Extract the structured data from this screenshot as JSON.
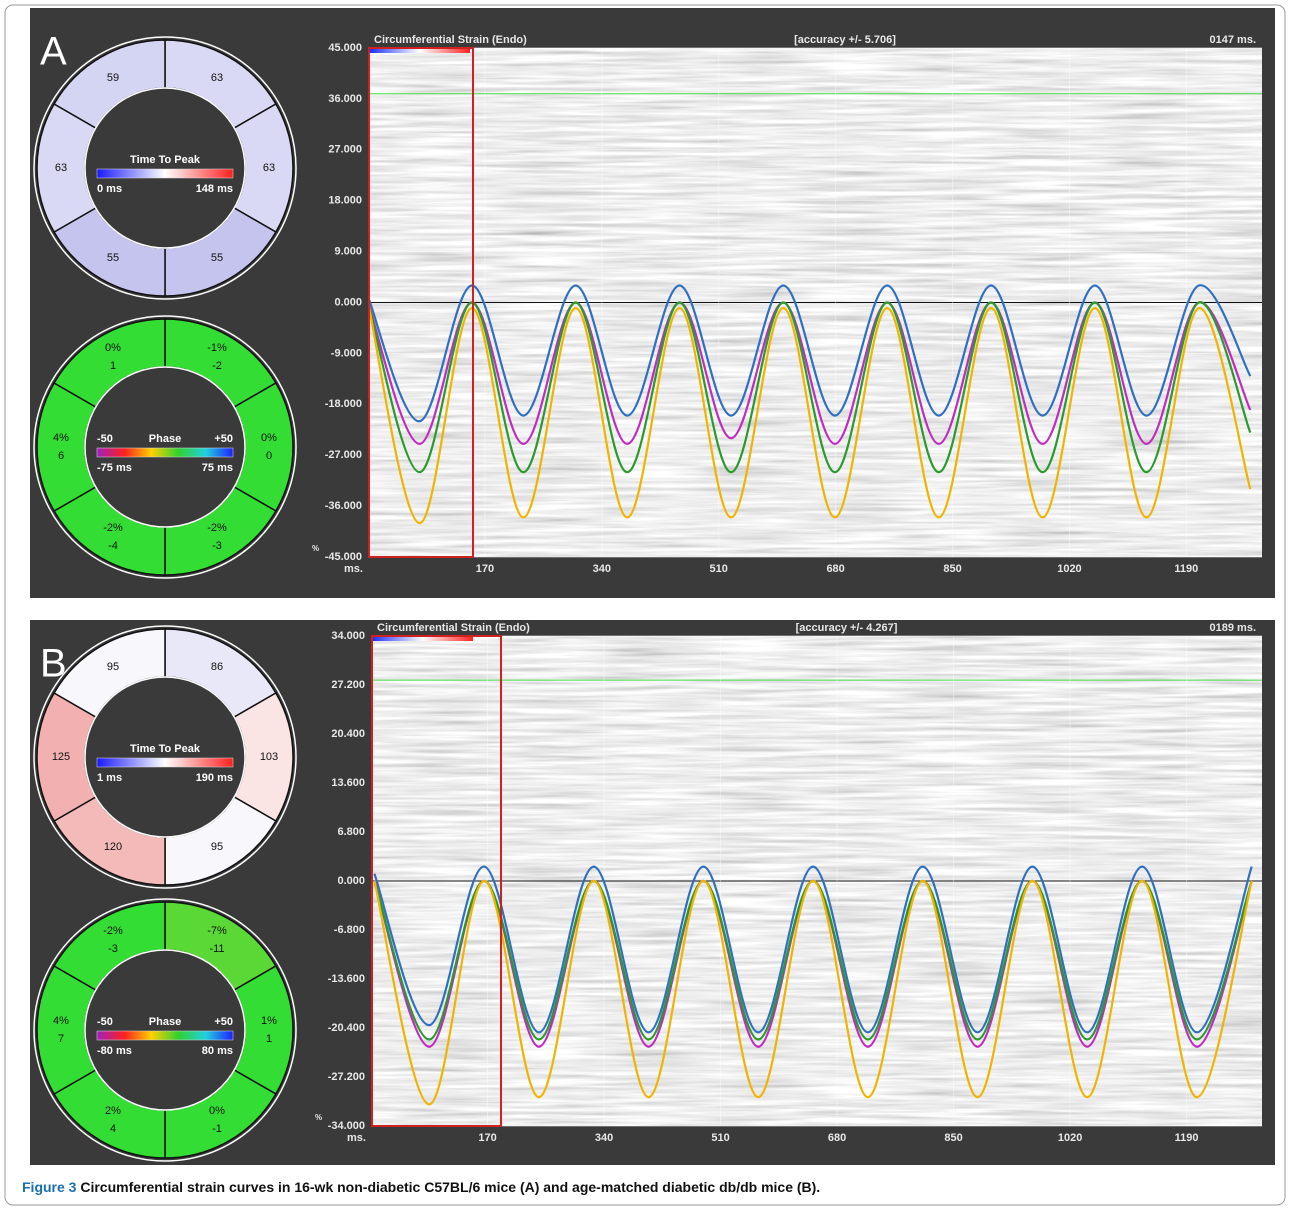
{
  "panels": [
    {
      "label": "A",
      "time_to_peak": {
        "title": "Time To Peak",
        "min_label": "0 ms",
        "max_label": "148 ms",
        "segments": [
          {
            "value": "63",
            "color": "#d9d9f5"
          },
          {
            "value": "63",
            "color": "#d9d9f5"
          },
          {
            "value": "55",
            "color": "#c4c4ee"
          },
          {
            "value": "55",
            "color": "#c4c4ee"
          },
          {
            "value": "63",
            "color": "#d9d9f5"
          },
          {
            "value": "59",
            "color": "#d4d4f3"
          }
        ]
      },
      "phase": {
        "title": "Phase",
        "low": "-50",
        "high": "+50",
        "min_label": "-75 ms",
        "max_label": "75 ms",
        "segments": [
          {
            "pct": "-1%",
            "value": "-2",
            "color": "#33dd33"
          },
          {
            "pct": "0%",
            "value": "0",
            "color": "#33dd33"
          },
          {
            "pct": "-2%",
            "value": "-3",
            "color": "#33dd33"
          },
          {
            "pct": "-2%",
            "value": "-4",
            "color": "#33dd33"
          },
          {
            "pct": "4%",
            "value": "6",
            "color": "#33dd33"
          },
          {
            "pct": "0%",
            "value": "1",
            "color": "#33dd33"
          }
        ]
      },
      "chart": {
        "type": "line",
        "title": "Circumferential Strain (Endo)",
        "accuracy": "[accuracy +/- 5.706]",
        "time": "0147 ms.",
        "x_label": "ms.",
        "y_unit": "%",
        "xlim": [
          0,
          1300
        ],
        "ylim": [
          -45,
          45
        ],
        "yticks": [
          {
            "value": 45,
            "label": "45.000"
          },
          {
            "value": 36,
            "label": "36.000"
          },
          {
            "value": 27,
            "label": "27.000"
          },
          {
            "value": 18,
            "label": "18.000"
          },
          {
            "value": 9,
            "label": "9.000"
          },
          {
            "value": 0,
            "label": "0.000"
          },
          {
            "value": -9,
            "label": "-9.000"
          },
          {
            "value": -18,
            "label": "-18.000"
          },
          {
            "value": -27,
            "label": "-27.000"
          },
          {
            "value": -36,
            "label": "-36.000"
          },
          {
            "value": -45,
            "label": "-45.000"
          }
        ],
        "xticks": [
          170,
          340,
          510,
          680,
          850,
          1020,
          1190
        ],
        "x": [
          0,
          75,
          151,
          226,
          302,
          377,
          453,
          528,
          604,
          679,
          755,
          830,
          906,
          981,
          1057,
          1132,
          1208,
          1283
        ],
        "series": [
          {
            "color": "#2f6fc0",
            "values": [
              1,
              -21,
              3,
              -20,
              3,
              -20,
              3,
              -20,
              3,
              -20,
              3,
              -20,
              3,
              -20,
              3,
              -20,
              3,
              -13
            ]
          },
          {
            "color": "#c02cc0",
            "values": [
              0,
              -25,
              0,
              -25,
              0,
              -25,
              0,
              -24,
              0,
              -25,
              0,
              -25,
              0,
              -25,
              0,
              -25,
              0,
              -19
            ]
          },
          {
            "color": "#2a9a2a",
            "values": [
              0,
              -30,
              0,
              -30,
              0,
              -30,
              0,
              -30,
              0,
              -30,
              0,
              -30,
              0,
              -30,
              0,
              -30,
              0,
              -23
            ]
          },
          {
            "color": "#f0b400",
            "values": [
              0,
              -39,
              -1,
              -38,
              -1,
              -38,
              -1,
              -38,
              -1,
              -38,
              -1,
              -38,
              -1,
              -38,
              -1,
              -38,
              -1,
              -33
            ]
          }
        ]
      }
    },
    {
      "label": "B",
      "time_to_peak": {
        "title": "Time To Peak",
        "min_label": "1 ms",
        "max_label": "190 ms",
        "segments": [
          {
            "value": "86",
            "color": "#e8e8f8"
          },
          {
            "value": "103",
            "color": "#fbe4e4"
          },
          {
            "value": "95",
            "color": "#f7f7fc"
          },
          {
            "value": "120",
            "color": "#f4baba"
          },
          {
            "value": "125",
            "color": "#f3b0b0"
          },
          {
            "value": "95",
            "color": "#f7f7fc"
          }
        ]
      },
      "phase": {
        "title": "Phase",
        "low": "-50",
        "high": "+50",
        "min_label": "-80 ms",
        "max_label": "80 ms",
        "segments": [
          {
            "pct": "-7%",
            "value": "-11",
            "color": "#5ad835"
          },
          {
            "pct": "1%",
            "value": "1",
            "color": "#33dd33"
          },
          {
            "pct": "0%",
            "value": "-1",
            "color": "#33dd33"
          },
          {
            "pct": "2%",
            "value": "4",
            "color": "#33dd33"
          },
          {
            "pct": "4%",
            "value": "7",
            "color": "#33dd33"
          },
          {
            "pct": "-2%",
            "value": "-3",
            "color": "#33dd33"
          }
        ]
      },
      "chart": {
        "type": "line",
        "title": "Circumferential Strain (Endo)",
        "accuracy": "[accuracy +/- 4.267]",
        "time": "0189 ms.",
        "x_label": "ms.",
        "y_unit": "%",
        "xlim": [
          0,
          1300
        ],
        "ylim": [
          -34,
          34
        ],
        "yticks": [
          {
            "value": 34,
            "label": "34.000"
          },
          {
            "value": 27.2,
            "label": "27.200"
          },
          {
            "value": 20.4,
            "label": "20.400"
          },
          {
            "value": 13.6,
            "label": "13.600"
          },
          {
            "value": 6.8,
            "label": "6.800"
          },
          {
            "value": 0,
            "label": "0.000"
          },
          {
            "value": -6.8,
            "label": "-6.800"
          },
          {
            "value": -13.6,
            "label": "-13.600"
          },
          {
            "value": -20.4,
            "label": "-20.400"
          },
          {
            "value": -27.2,
            "label": "-27.200"
          },
          {
            "value": -34,
            "label": "-34.000"
          }
        ],
        "xticks": [
          170,
          340,
          510,
          680,
          850,
          1020,
          1190
        ],
        "x": [
          5,
          85,
          165,
          245,
          325,
          405,
          485,
          565,
          645,
          725,
          805,
          885,
          965,
          1045,
          1125,
          1205,
          1285
        ],
        "series": [
          {
            "color": "#2f6fc0",
            "values": [
              1,
              -20,
              2,
              -21,
              2,
              -21,
              2,
              -21,
              2,
              -21,
              2,
              -21,
              2,
              -21,
              2,
              -21,
              2
            ]
          },
          {
            "color": "#c02cc0",
            "values": [
              0,
              -23,
              0,
              -23,
              0,
              -23,
              0,
              -23,
              0,
              -23,
              0,
              -23,
              0,
              -23,
              0,
              -23,
              0
            ]
          },
          {
            "color": "#2a9a2a",
            "values": [
              0,
              -22,
              0,
              -22,
              0,
              -22,
              0,
              -22,
              0,
              -22,
              0,
              -22,
              0,
              -22,
              0,
              -22,
              0
            ]
          },
          {
            "color": "#f0b400",
            "values": [
              0,
              -31,
              0,
              -30,
              0,
              -30,
              0,
              -30,
              0,
              -30,
              0,
              -30,
              0,
              -30,
              0,
              -30,
              0
            ]
          }
        ]
      }
    }
  ],
  "caption": {
    "label": "Figure 3",
    "text": " Circumferential strain curves in 16-wk non-diabetic C57BL/6 mice (A) and age-matched diabetic db/db mice (B)."
  }
}
